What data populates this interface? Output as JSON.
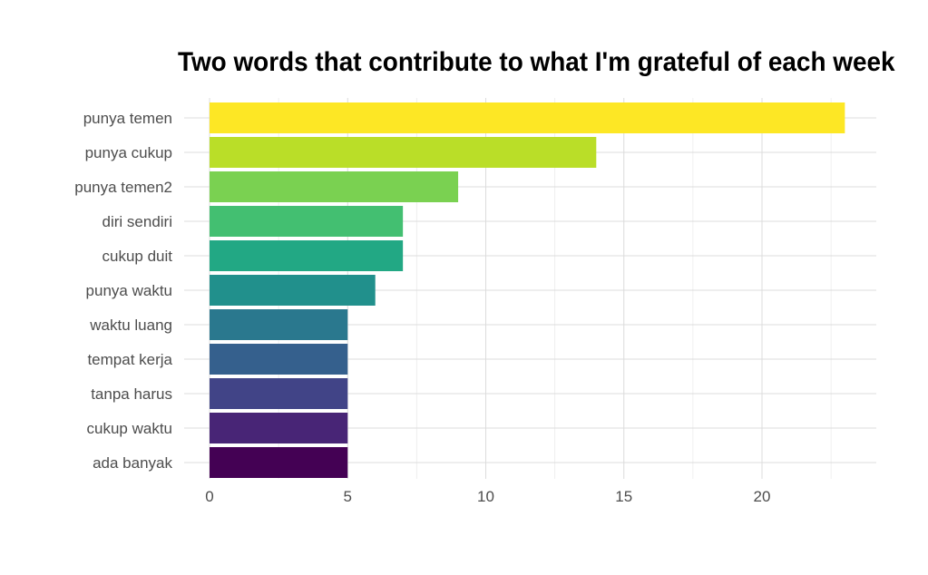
{
  "chart_data": {
    "type": "bar",
    "orientation": "horizontal",
    "title": "Two words that contribute to what I'm grateful of each week",
    "xlabel": "",
    "ylabel": "",
    "categories": [
      "punya temen",
      "punya cukup",
      "punya temen2",
      "diri sendiri",
      "cukup duit",
      "punya waktu",
      "waktu luang",
      "tempat kerja",
      "tanpa harus",
      "cukup waktu",
      "ada banyak"
    ],
    "values": [
      23,
      14,
      9,
      7,
      7,
      6,
      5,
      5,
      5,
      5,
      5
    ],
    "colors": [
      "#FDE725",
      "#BADE28",
      "#7AD151",
      "#43BF71",
      "#22A884",
      "#21908C",
      "#2A788E",
      "#35608D",
      "#414487",
      "#482576",
      "#440154"
    ],
    "x_ticks": [
      0,
      5,
      10,
      15,
      20
    ],
    "xlim": [
      0,
      24
    ],
    "grid": true,
    "legend": "none"
  }
}
